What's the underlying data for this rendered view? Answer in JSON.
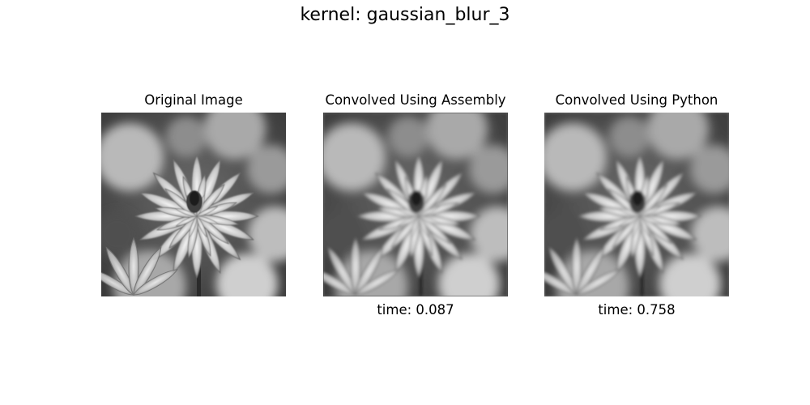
{
  "figure": {
    "title": "kernel: gaussian_blur_3"
  },
  "panels": [
    {
      "title": "Original Image",
      "caption": "",
      "image": "grayscale-dahlia-flower-photo"
    },
    {
      "title": "Convolved Using Assembly",
      "caption": "time: 0.087",
      "image": "grayscale-dahlia-flower-photo-blurred"
    },
    {
      "title": "Convolved Using Python",
      "caption": "time: 0.758",
      "image": "grayscale-dahlia-flower-photo-blurred"
    }
  ]
}
